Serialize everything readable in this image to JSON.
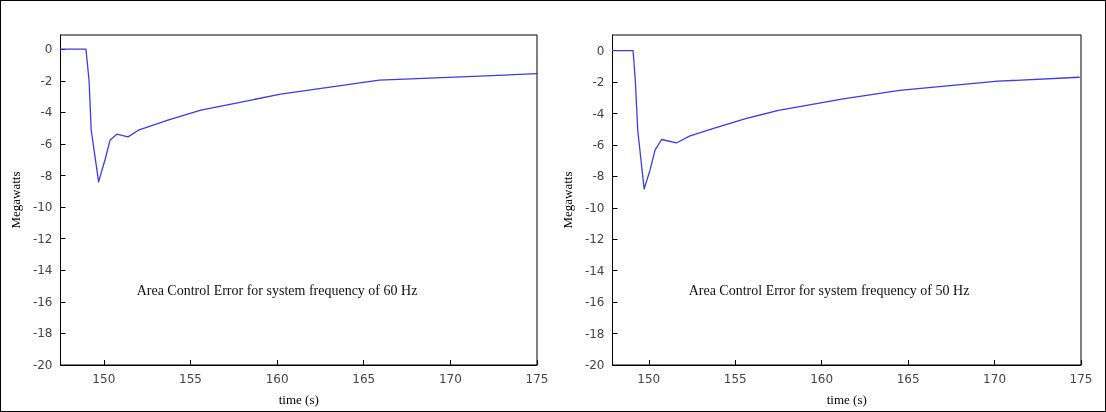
{
  "chart_data": [
    {
      "type": "line",
      "xlabel": "time (s)",
      "ylabel": "Megawatts",
      "annotations": [
        "Area Control Error for system frequency of 60 Hz"
      ],
      "xlim": [
        147.5,
        175
      ],
      "xticks": [
        150,
        155,
        160,
        165,
        170,
        175
      ],
      "ylim": [
        -20,
        0.9
      ],
      "yticks": [
        0,
        -2,
        -4,
        -6,
        -8,
        -10,
        -12,
        -14,
        -16,
        -18,
        -20
      ],
      "series": [
        {
          "color": "#3a3aee",
          "x": [
            147.5,
            148.97,
            149.15,
            149.27,
            149.7,
            150.07,
            150.36,
            150.75,
            151.4,
            152.0,
            153.7,
            155.6,
            157.5,
            160.2,
            165.9,
            171.7,
            175
          ],
          "values": [
            0,
            0,
            -2.0,
            -5.1,
            -8.4,
            -7.0,
            -5.76,
            -5.38,
            -5.55,
            -5.13,
            -4.49,
            -3.86,
            -3.44,
            -2.85,
            -1.96,
            -1.71,
            -1.54
          ]
        }
      ]
    },
    {
      "type": "line",
      "xlabel": "time (s)",
      "ylabel": "Megawatts",
      "annotations": [
        "Area Control Error for system frequency of 50 Hz"
      ],
      "xlim": [
        147.9,
        175
      ],
      "xticks": [
        150,
        155,
        160,
        165,
        170,
        175
      ],
      "ylim": [
        -20,
        1
      ],
      "yticks": [
        0,
        -2,
        -4,
        -6,
        -8,
        -10,
        -12,
        -14,
        -16,
        -18,
        -20
      ],
      "series": [
        {
          "color": "#3a3aee",
          "x": [
            147.9,
            149.09,
            149.22,
            149.36,
            149.73,
            150.07,
            150.36,
            150.74,
            151.6,
            152.35,
            153.7,
            155.6,
            157.5,
            161.25,
            164.5,
            170.2,
            174.9
          ],
          "values": [
            0,
            0,
            -1.9,
            -5.06,
            -8.8,
            -7.6,
            -6.33,
            -5.65,
            -5.87,
            -5.44,
            -4.96,
            -4.32,
            -3.8,
            -3.06,
            -2.53,
            -1.94,
            -1.69
          ]
        }
      ]
    }
  ]
}
